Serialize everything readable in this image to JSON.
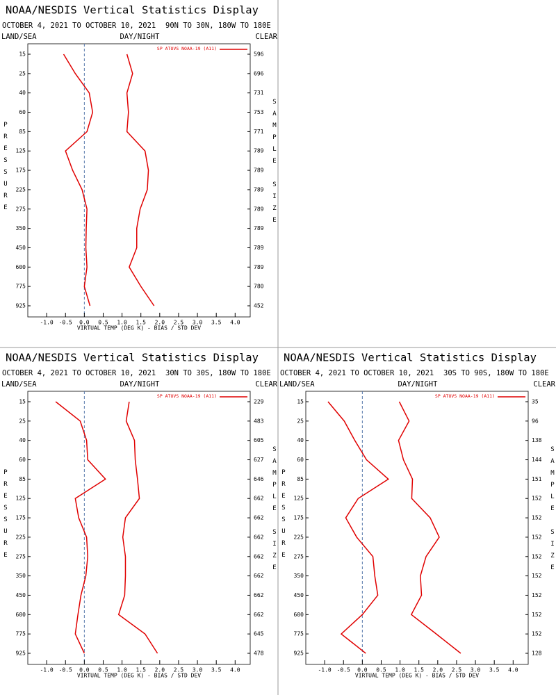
{
  "chart_data": [
    {
      "type": "line",
      "title": "NOAA/NESDIS Vertical Statistics Display",
      "date_range": "OCTOBER 4, 2021 TO OCTOBER 10, 2021",
      "region": "90N TO 30N, 180W TO 180E",
      "left_header": "LAND/SEA",
      "center_header": "DAY/NIGHT",
      "right_header": "CLEAR",
      "y_label": "PRESSURE",
      "y2_label": "SAMPLE SIZE",
      "x_label": "VIRTUAL TEMP (DEG K) - BIAS / STD DEV",
      "categories": [
        "15",
        "25",
        "40",
        "60",
        "85",
        "125",
        "175",
        "225",
        "275",
        "350",
        "450",
        "600",
        "775",
        "925"
      ],
      "sample_size": [
        "596",
        "696",
        "731",
        "753",
        "771",
        "789",
        "789",
        "789",
        "789",
        "789",
        "789",
        "789",
        "780",
        "452"
      ],
      "series": [
        {
          "name": "SP ATOVS NOAA-19 (A11)",
          "color": "#e00000",
          "values": [
            -0.55,
            -0.24,
            0.13,
            0.22,
            0.07,
            -0.5,
            -0.31,
            -0.06,
            0.07,
            0.05,
            0.04,
            0.07,
            0,
            0.15
          ]
        },
        {
          "color": "#e00000",
          "values": [
            1.13,
            1.28,
            1.13,
            1.17,
            1.13,
            1.61,
            1.7,
            1.67,
            1.48,
            1.39,
            1.39,
            1.19,
            1.5,
            1.85
          ]
        }
      ],
      "xlim": [
        -1.5,
        4.4
      ],
      "xticks": [
        {
          "value": -1,
          "label": "-1.0"
        },
        -0.5,
        {
          "value": 0,
          "label": "0.0"
        },
        0.5,
        {
          "value": 1,
          "label": "1.0"
        },
        1.5,
        {
          "value": 2,
          "label": "2.0"
        },
        2.5,
        {
          "value": 3,
          "label": "3.0"
        },
        3.5,
        {
          "value": 4,
          "label": "4.0"
        }
      ],
      "ref_line": 0
    },
    {
      "type": "line",
      "title": "NOAA/NESDIS Vertical Statistics Display",
      "date_range": "OCTOBER 4, 2021 TO OCTOBER 10, 2021",
      "region": "30N TO 30S, 180W TO 180E",
      "left_header": "LAND/SEA",
      "center_header": "DAY/NIGHT",
      "right_header": "CLEAR",
      "y_label": "PRESSURE",
      "y2_label": "SAMPLE SIZE",
      "x_label": "VIRTUAL TEMP (DEG K) - BIAS / STD DEV",
      "categories": [
        "15",
        "25",
        "40",
        "60",
        "85",
        "125",
        "175",
        "225",
        "275",
        "350",
        "450",
        "600",
        "775",
        "925"
      ],
      "sample_size": [
        "229",
        "483",
        "605",
        "627",
        "646",
        "662",
        "662",
        "662",
        "662",
        "662",
        "662",
        "662",
        "645",
        "478"
      ],
      "series": [
        {
          "name": "SP ATOVS NOAA-19 (A11)",
          "color": "#e00000",
          "values": [
            -0.76,
            -0.11,
            0.06,
            0.09,
            0.56,
            -0.24,
            -0.15,
            0.06,
            0.09,
            0.04,
            -0.09,
            -0.17,
            -0.24,
            0
          ]
        },
        {
          "color": "#e00000",
          "values": [
            1.19,
            1.11,
            1.33,
            1.35,
            1.41,
            1.46,
            1.09,
            1.02,
            1.09,
            1.09,
            1.07,
            0.91,
            1.61,
            1.94
          ]
        }
      ],
      "xlim": [
        -1.5,
        4.4
      ],
      "xticks": [
        {
          "value": -1,
          "label": "-1.0"
        },
        -0.5,
        {
          "value": 0,
          "label": "0.0"
        },
        0.5,
        {
          "value": 1,
          "label": "1.0"
        },
        1.5,
        {
          "value": 2,
          "label": "2.0"
        },
        2.5,
        {
          "value": 3,
          "label": "3.0"
        },
        3.5,
        {
          "value": 4,
          "label": "4.0"
        }
      ],
      "ref_line": 0
    },
    {
      "type": "line",
      "title": "NOAA/NESDIS Vertical Statistics Display",
      "date_range": "OCTOBER 4, 2021 TO OCTOBER 10, 2021",
      "region": "30S TO 90S, 180W TO 180E",
      "left_header": "LAND/SEA",
      "center_header": "DAY/NIGHT",
      "right_header": "CLEAR",
      "y_label": "PRESSURE",
      "y2_label": "SAMPLE SIZE",
      "x_label": "VIRTUAL TEMP (DEG K) - BIAS / STD DEV",
      "categories": [
        "15",
        "25",
        "40",
        "60",
        "85",
        "125",
        "175",
        "225",
        "275",
        "350",
        "450",
        "600",
        "775",
        "925"
      ],
      "sample_size": [
        "35",
        "96",
        "138",
        "144",
        "151",
        "152",
        "152",
        "152",
        "152",
        "152",
        "152",
        "152",
        "152",
        "128"
      ],
      "series": [
        {
          "name": "SP ATOVS NOAA-19 (A11)",
          "color": "#e00000",
          "values": [
            -0.91,
            -0.48,
            -0.2,
            0.11,
            0.69,
            -0.11,
            -0.44,
            -0.15,
            0.28,
            0.33,
            0.41,
            0,
            -0.56,
            0.09
          ]
        },
        {
          "color": "#e00000",
          "values": [
            0.98,
            1.24,
            0.96,
            1.09,
            1.33,
            1.31,
            1.8,
            2.04,
            1.69,
            1.54,
            1.57,
            1.3,
            1.96,
            2.61
          ]
        }
      ],
      "xlim": [
        -1.5,
        4.4
      ],
      "xticks": [
        {
          "value": -1,
          "label": "-1.0"
        },
        -0.5,
        {
          "value": 0,
          "label": "0.0"
        },
        0.5,
        {
          "value": 1,
          "label": "1.0"
        },
        1.5,
        {
          "value": 2,
          "label": "2.0"
        },
        2.5,
        {
          "value": 3,
          "label": "3.0"
        },
        3.5,
        {
          "value": 4,
          "label": "4.0"
        }
      ],
      "ref_line": 0
    }
  ]
}
